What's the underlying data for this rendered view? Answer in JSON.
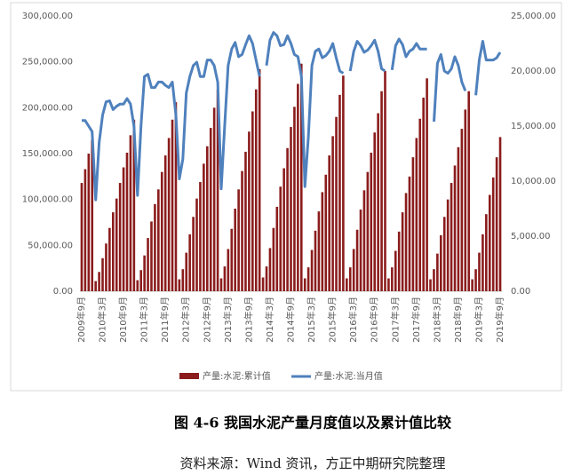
{
  "chart_data": {
    "type": "bar-line",
    "title": "图 4-6 我国水泥产量月度值以及累计值比较",
    "source": "资料来源：Wind 资讯，方正中期研究院整理",
    "categories": [
      "2009年9月",
      null,
      null,
      null,
      null,
      null,
      "2010年3月",
      null,
      null,
      null,
      null,
      null,
      "2010年9月",
      null,
      null,
      null,
      null,
      null,
      "2011年3月",
      null,
      null,
      null,
      null,
      null,
      "2011年9月",
      null,
      null,
      null,
      null,
      null,
      "2012年3月",
      null,
      null,
      null,
      null,
      null,
      "2012年9月",
      null,
      null,
      null,
      null,
      null,
      "2013年3月",
      null,
      null,
      null,
      null,
      null,
      "2013年9月",
      null,
      null,
      null,
      null,
      null,
      "2014年3月",
      null,
      null,
      null,
      null,
      null,
      "2014年9月",
      null,
      null,
      null,
      null,
      null,
      "2015年3月",
      null,
      null,
      null,
      null,
      null,
      "2015年9月",
      null,
      null,
      null,
      null,
      null,
      "2016年3月",
      null,
      null,
      null,
      null,
      null,
      "2016年9月",
      null,
      null,
      null,
      null,
      null,
      "2017年3月",
      null,
      null,
      null,
      null,
      null,
      "2017年9月",
      null,
      null,
      null,
      null,
      null,
      "2018年3月",
      null,
      null,
      null,
      null,
      null,
      "2018年9月",
      null,
      null,
      null,
      null,
      null,
      "2019年3月",
      null,
      null,
      null,
      null,
      null,
      "2019年9月"
    ],
    "series": [
      {
        "name": "产量:水泥:累计值",
        "color": "#8b1c1c",
        "axis": "y",
        "values": [
          118000,
          133000,
          150000,
          165000,
          11000,
          21000,
          36000,
          52000,
          69000,
          86000,
          101000,
          118000,
          135000,
          151000,
          170000,
          187000,
          12000,
          23000,
          39000,
          58000,
          76000,
          95000,
          111000,
          130000,
          148000,
          167000,
          187000,
          206000,
          13000,
          24000,
          42000,
          62000,
          81000,
          101000,
          119000,
          139000,
          158000,
          178000,
          200000,
          220000,
          14000,
          27000,
          46000,
          68000,
          90000,
          111000,
          131000,
          152000,
          174000,
          196000,
          220000,
          242000,
          15000,
          27000,
          47000,
          69000,
          92000,
          114000,
          134000,
          156000,
          179000,
          201000,
          226000,
          248000,
          14000,
          26000,
          45000,
          66000,
          87000,
          108000,
          127000,
          148000,
          169000,
          190000,
          214000,
          235000,
          14000,
          26000,
          46000,
          67000,
          89000,
          110000,
          130000,
          151000,
          173000,
          194000,
          218000,
          240000,
          14000,
          26000,
          44000,
          65000,
          86000,
          107000,
          125000,
          146000,
          167000,
          188000,
          211000,
          232000,
          13000,
          24000,
          41000,
          61000,
          81000,
          100000,
          118000,
          137000,
          157000,
          177000,
          198000,
          218000,
          13000,
          24000,
          42000,
          62000,
          84000,
          105000,
          124000,
          146000,
          168000
        ]
      },
      {
        "name": "产量:水泥:当月值",
        "color": "#4f81bd",
        "axis": "y2",
        "values": [
          15500,
          15500,
          15000,
          14500,
          8300,
          13500,
          16000,
          17200,
          17300,
          16500,
          16800,
          17000,
          17000,
          17500,
          17000,
          15000,
          8700,
          15000,
          19500,
          19700,
          18500,
          18500,
          19000,
          19000,
          18700,
          18500,
          19000,
          16000,
          10200,
          12000,
          18000,
          19500,
          20500,
          20800,
          19500,
          19500,
          21000,
          21000,
          20500,
          19000,
          9300,
          15000,
          20500,
          22000,
          22600,
          21300,
          21500,
          22400,
          23200,
          22500,
          21000,
          19500,
          null,
          20500,
          22800,
          23500,
          23200,
          22300,
          22400,
          23200,
          22500,
          21500,
          21300,
          19500,
          9500,
          14000,
          20500,
          21800,
          22000,
          21200,
          21400,
          21800,
          22500,
          21200,
          20000,
          19800,
          null,
          20000,
          21800,
          22700,
          22300,
          21700,
          21900,
          22300,
          22800,
          21800,
          20200,
          20000,
          null,
          20100,
          22300,
          22900,
          22400,
          21300,
          21800,
          22000,
          22500,
          22000,
          22000,
          22000,
          null,
          15400,
          20700,
          21500,
          20000,
          19800,
          20200,
          21300,
          20500,
          19000,
          18200,
          null,
          null,
          17800,
          21000,
          22700,
          21000,
          21000,
          21000,
          21200,
          21700
        ]
      }
    ],
    "ylim": [
      0,
      300000
    ],
    "yticks": [
      {
        "value": 0,
        "label": "0.00"
      },
      {
        "value": 50000,
        "label": "50,000.00"
      },
      {
        "value": 100000,
        "label": "100,000.00"
      },
      {
        "value": 150000,
        "label": "150,000.00"
      },
      {
        "value": 200000,
        "label": "200,000.00"
      },
      {
        "value": 250000,
        "label": "250,000.00"
      },
      {
        "value": 300000,
        "label": "300,000.00"
      }
    ],
    "y2lim": [
      0,
      25000
    ],
    "y2ticks": [
      {
        "value": 0,
        "label": "0.00"
      },
      {
        "value": 5000,
        "label": "5,000.00"
      },
      {
        "value": 10000,
        "label": "10,000.00"
      },
      {
        "value": 15000,
        "label": "15,000.00"
      },
      {
        "value": 20000,
        "label": "20,000.00"
      },
      {
        "value": 25000,
        "label": "25,000.00"
      }
    ]
  }
}
